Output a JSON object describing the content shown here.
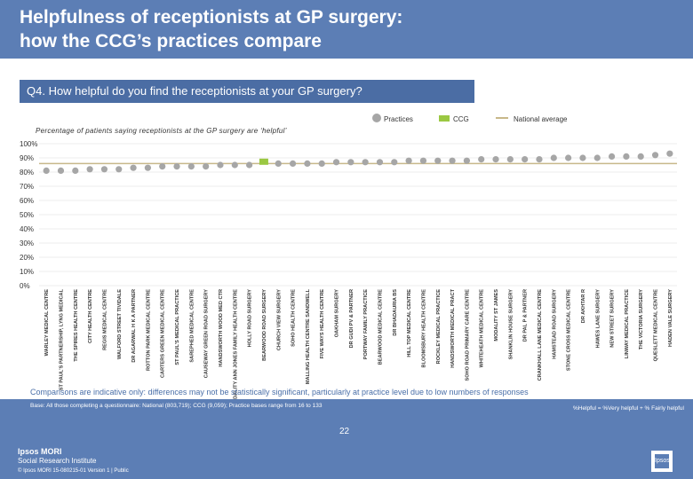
{
  "header": {
    "title_line1": "Helpfulness of receptionists at GP surgery:",
    "title_line2": "how the CCG’s practices compare"
  },
  "question": "Q4. How helpful do you find the receptionists at your GP surgery?",
  "legend": {
    "practices": "Practices",
    "ccg": "CCG",
    "national": "National average"
  },
  "colors": {
    "practices": "#a6a6a6",
    "ccg": "#9bc842",
    "national": "#c8b88a"
  },
  "subtitle": "Percentage of patients saying receptionists at the GP surgery are ‘helpful’",
  "chart_data": {
    "type": "scatter",
    "title": "Percentage of patients saying receptionists at the GP surgery are ‘helpful’",
    "ylabel": "",
    "ylim": [
      0,
      100
    ],
    "yticks": [
      "0%",
      "10%",
      "20%",
      "30%",
      "40%",
      "50%",
      "60%",
      "70%",
      "80%",
      "90%",
      "100%"
    ],
    "national_average": 86,
    "ccg_value": 87,
    "ccg_category": "BEARWOOD ROAD SURGERY",
    "categories": [
      "WARLEY MEDICAL CENTRE",
      "ST PAUL'S PARTNERSHIP, LYNG MEDICAL",
      "THE SPIRES HEALTH CENTRE",
      "CITY HEALTH CENTRE",
      "REGIS MEDICAL CENTRE",
      "WALFORD STREET TIVIDALE",
      "DR AGARWAL H K A PARTNER",
      "ROTTON PARK MEDICAL CENTRE",
      "CARTERS GREEN MEDICAL CENTRE",
      "ST PAUL'S MEDICAL PRACTICE",
      "SAREPHED MEDICAL CENTRE",
      "CAUSEWAY GREEN ROAD SURGERY",
      "HANDSWORTH WOOD MED CTR",
      "MODALITY ANN JONES FAMILY HEALTH CENTRE",
      "HOLLY ROAD SURGERY",
      "BEARWOOD ROAD SURGERY",
      "CHURCH VIEW SURGERY",
      "SOHO HEALTH CENTRE",
      "MALLING HEALTH CENTRE SANDWELL",
      "FIVE WAYS HEALTH CENTRE",
      "OAKHAM SURGERY",
      "DR GUDI PV & PARTNER",
      "PORTWAY FAMILY PRACTICE",
      "BEARWOOD MEDICAL CENTRE",
      "DR BHADAURIA BS",
      "HILL TOP MEDICAL CENTRE",
      "BLOOMSBURY HEALTH CENTRE",
      "ROCKLEY MEDICAL PRACTICE",
      "HANDSWORTH MEDICAL PRACT",
      "SOHO ROAD PRIMARY CARE CENTRE",
      "WHITEHEATH MEDICAL CENTRE",
      "MODALITY ST JAMES",
      "SHANKLIN HOUSE SURGERY",
      "DR PAL P & PARTNER",
      "CRANKHALL LANE MEDICAL CENTRE",
      "HAMSTEAD ROAD SURGERY",
      "STONE CROSS MEDICAL CENTRE",
      "DR AKHTAR R",
      "HAWES LANE SURGERY",
      "NEW STREET SURGERY",
      "LINWAY MEDICAL PRACTICE",
      "THE VICTORIA SURGERY",
      "QUESLETT MEDICAL CENTRE",
      "HADEN VALE SURGERY"
    ],
    "values": [
      81,
      81,
      81,
      82,
      82,
      82,
      83,
      83,
      84,
      84,
      84,
      84,
      85,
      85,
      85,
      86,
      86,
      86,
      86,
      86,
      87,
      87,
      87,
      87,
      87,
      88,
      88,
      88,
      88,
      88,
      89,
      89,
      89,
      89,
      89,
      90,
      90,
      90,
      90,
      91,
      91,
      91,
      92,
      93
    ]
  },
  "caveat": "Comparisons are indicative only: differences may not be statistically significant, particularly at practice level due to low numbers of responses",
  "base": "Base: All those completing a questionnaire: National (803,719); CCG (9,059); Practice bases range from 16 to 133",
  "definition": "%Helpful = %Very helpful + % Fairly helpful",
  "footer": {
    "brand": "Ipsos MORI",
    "brand_sub": "Social Research Institute",
    "meta": "© Ipsos MORI     15-080215-01 Version 1 | Public",
    "page": "22",
    "logo": "Ipsos"
  }
}
